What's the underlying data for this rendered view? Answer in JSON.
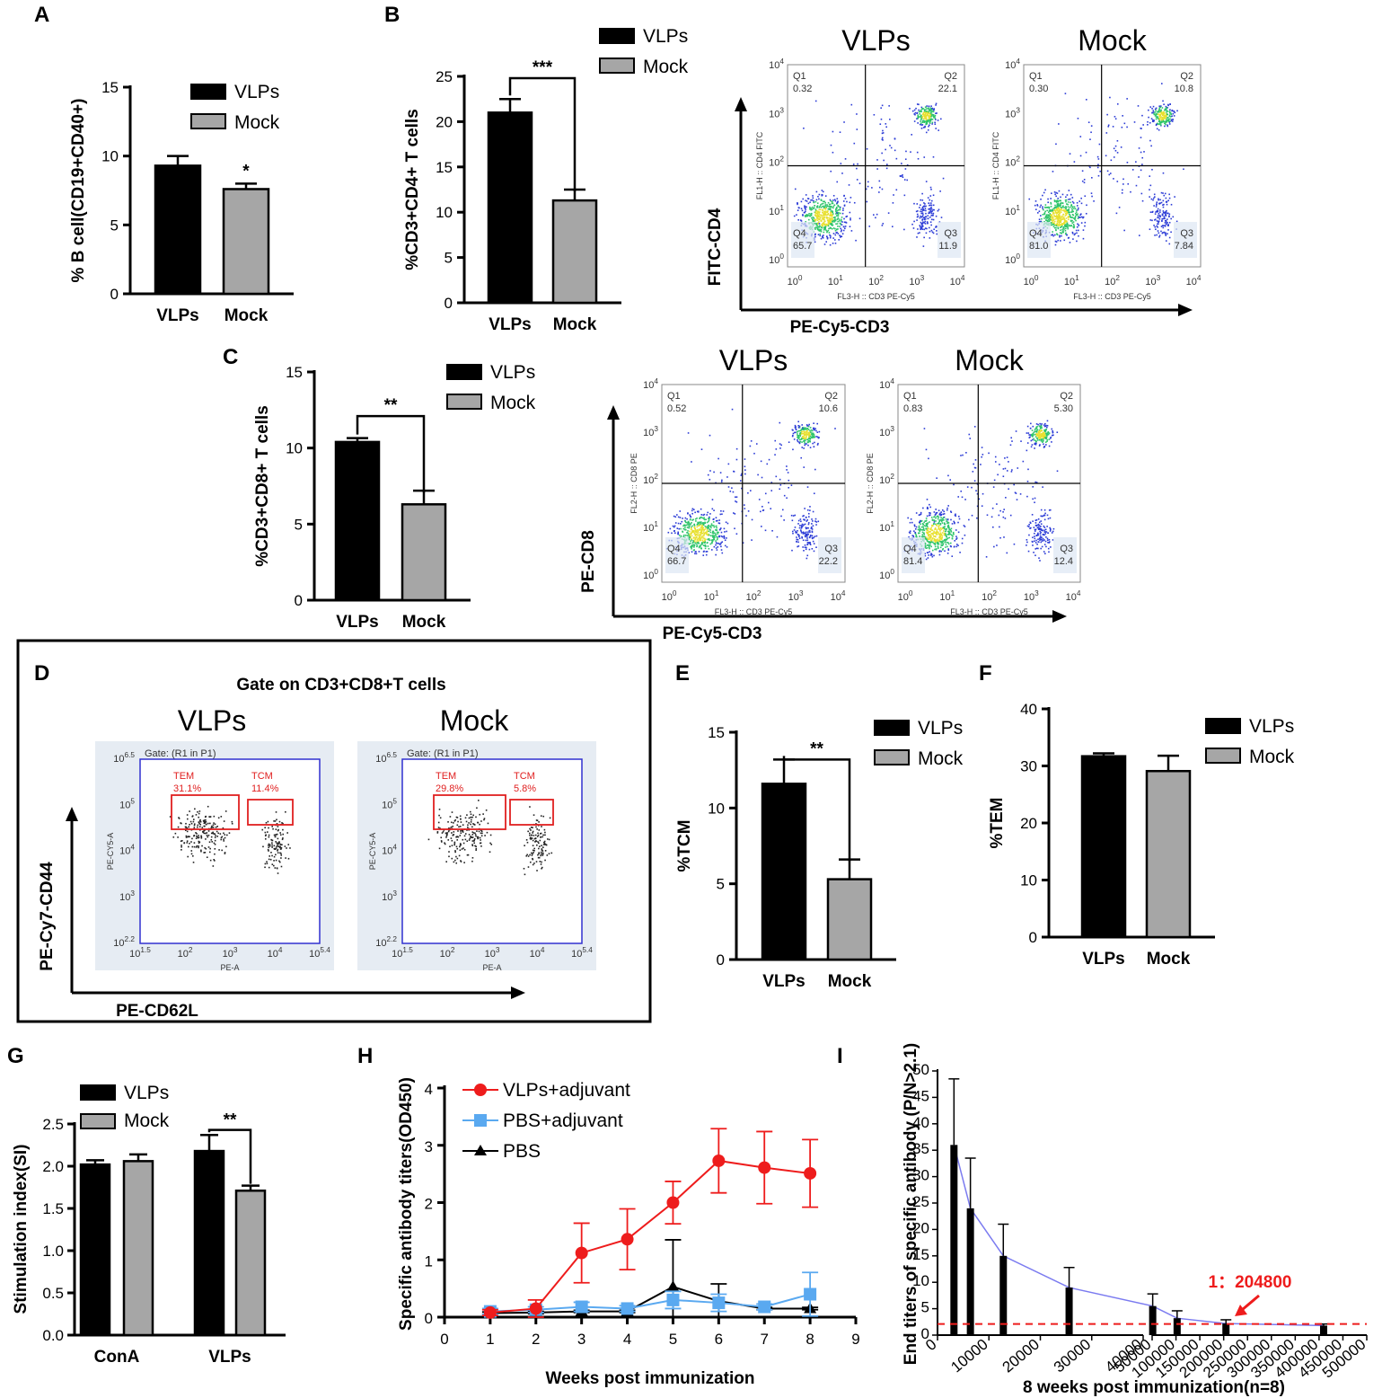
{
  "panel_letters": [
    "A",
    "B",
    "C",
    "D",
    "E",
    "F",
    "G",
    "H",
    "I"
  ],
  "colors": {
    "vlps": "#000000",
    "mock": "#a6a6a6",
    "red": "#ee1c1c",
    "blue": "#5aa9f0",
    "line_i": "#7b7bf0"
  },
  "legend": {
    "vlps": "VLPs",
    "mock": "Mock"
  },
  "chart_data": [
    {
      "id": "A",
      "type": "bar",
      "categories": [
        "VLPs",
        "Mock"
      ],
      "values": [
        9.3,
        7.6
      ],
      "errors": [
        0.7,
        0.4
      ],
      "ylabel": "% B cell(CD19+CD40+)",
      "ylim": [
        0,
        15
      ],
      "yticks": [
        "0",
        "5",
        "10",
        "15"
      ],
      "sig": "*"
    },
    {
      "id": "B",
      "type": "bar",
      "categories": [
        "VLPs",
        "Mock"
      ],
      "values": [
        21.0,
        11.3
      ],
      "errors": [
        1.5,
        1.2
      ],
      "ylabel": "%CD3+CD4+ T cells",
      "ylim": [
        0,
        25
      ],
      "yticks": [
        "0",
        "5",
        "10",
        "15",
        "20",
        "25"
      ],
      "sig": "***"
    },
    {
      "id": "C",
      "type": "bar",
      "categories": [
        "VLPs",
        "Mock"
      ],
      "values": [
        10.4,
        6.3
      ],
      "errors": [
        0.25,
        0.9
      ],
      "ylabel": "%CD3+CD8+ T cells",
      "ylim": [
        0,
        15
      ],
      "yticks": [
        "0",
        "5",
        "10",
        "15"
      ],
      "sig": "**"
    },
    {
      "id": "E",
      "type": "bar",
      "categories": [
        "VLPs",
        "Mock"
      ],
      "values": [
        11.6,
        5.3
      ],
      "errors": [
        1.6,
        1.3
      ],
      "ylabel": "%TCM",
      "ylim": [
        0,
        15
      ],
      "yticks": [
        "0",
        "5",
        "10",
        "15"
      ],
      "sig": "**"
    },
    {
      "id": "F",
      "type": "bar",
      "categories": [
        "VLPs",
        "Mock"
      ],
      "values": [
        31.7,
        29.1
      ],
      "errors": [
        0.5,
        2.7
      ],
      "ylabel": "%TEM",
      "ylim": [
        0,
        40
      ],
      "yticks": [
        "0",
        "10",
        "20",
        "30",
        "40"
      ],
      "sig": ""
    },
    {
      "id": "G",
      "type": "bar",
      "categories": [
        "ConA",
        "VLPs"
      ],
      "series": [
        {
          "name": "VLPs",
          "values": [
            2.02,
            2.18
          ],
          "errors": [
            0.05,
            0.19
          ]
        },
        {
          "name": "Mock",
          "values": [
            2.06,
            1.71
          ],
          "errors": [
            0.08,
            0.06
          ]
        }
      ],
      "ylabel": "Stimulation index(SI)",
      "ylim": [
        0,
        2.5
      ],
      "yticks": [
        "0.0",
        "0.5",
        "1.0",
        "1.5",
        "2.0",
        "2.5"
      ],
      "sig": "**"
    },
    {
      "id": "H",
      "type": "line",
      "x": [
        1,
        2,
        3,
        4,
        5,
        6,
        7,
        8
      ],
      "series": [
        {
          "name": "VLPs+adjuvant",
          "values": [
            0.08,
            0.15,
            1.12,
            1.36,
            2.0,
            2.73,
            2.61,
            2.51
          ],
          "errors": [
            0.05,
            0.15,
            0.52,
            0.53,
            0.37,
            0.56,
            0.63,
            0.59
          ]
        },
        {
          "name": "PBS+adjuvant",
          "values": [
            0.1,
            0.13,
            0.18,
            0.15,
            0.3,
            0.25,
            0.18,
            0.4
          ],
          "errors": [
            0.05,
            0.05,
            0.08,
            0.05,
            0.15,
            0.15,
            0.05,
            0.38
          ]
        },
        {
          "name": "PBS",
          "values": [
            0.07,
            0.08,
            0.1,
            0.1,
            0.53,
            0.28,
            0.15,
            0.15
          ],
          "errors": [
            0.02,
            0.02,
            0.02,
            0.02,
            0.82,
            0.3,
            0.02,
            0.02
          ]
        }
      ],
      "xlabel": "Weeks post immunization",
      "ylabel": "Specific antibody titers(OD450)",
      "xlim": [
        0,
        9
      ],
      "ylim": [
        0,
        4
      ],
      "xticks": [
        "0",
        "1",
        "2",
        "3",
        "4",
        "5",
        "6",
        "7",
        "8",
        "9"
      ],
      "yticks": [
        "0",
        "1",
        "2",
        "3",
        "4"
      ]
    },
    {
      "id": "I",
      "type": "bar",
      "x": [
        3200,
        6400,
        12800,
        25600,
        51200,
        102400,
        204800,
        409600
      ],
      "values": [
        36,
        24,
        15,
        9,
        5.5,
        3.2,
        2.2,
        1.8
      ],
      "errors": [
        12.5,
        9.5,
        6,
        3.8,
        2.3,
        1.4,
        0.7,
        0.3
      ],
      "cutoff": 2.1,
      "xlabel": "8 weeks post immunization(n=8)",
      "ylabel": "End titers of specific antibody (P/N>2.1)",
      "ylim": [
        0,
        50
      ],
      "yticks": [
        "0",
        "5",
        "10",
        "15",
        "20",
        "25",
        "30",
        "35",
        "40",
        "45",
        "50"
      ],
      "xticks_left": [
        "0",
        "10000",
        "20000",
        "30000",
        "40000"
      ],
      "xticks_right": [
        "50000",
        "100000",
        "150000",
        "200000",
        "250000",
        "300000",
        "350000",
        "400000",
        "450000",
        "500000"
      ],
      "annotation": "1：204800"
    }
  ],
  "flow_panels": [
    {
      "id": "B",
      "marker_y": "FITC-CD4",
      "marker_x": "PE-Cy5-CD3",
      "plots": [
        {
          "title": "VLPs",
          "q1": "0.32",
          "q2": "22.1",
          "q3": "11.9",
          "q4": "65.7",
          "ylab": "FL1-H :: CD4 FITC",
          "xlab": "FL3-H :: CD3 PE-Cy5"
        },
        {
          "title": "Mock",
          "q1": "0.30",
          "q2": "10.8",
          "q3": "7.84",
          "q4": "81.0",
          "ylab": "FL1-H :: CD4 FITC",
          "xlab": "FL3-H :: CD3 PE-Cy5"
        }
      ]
    },
    {
      "id": "C",
      "marker_y": "PE-CD8",
      "marker_x": "PE-Cy5-CD3",
      "plots": [
        {
          "title": "VLPs",
          "q1": "0.52",
          "q2": "10.6",
          "q3": "22.2",
          "q4": "66.7",
          "ylab": "FL2-H :: CD8 PE",
          "xlab": "FL3-H :: CD3 PE-Cy5"
        },
        {
          "title": "Mock",
          "q1": "0.83",
          "q2": "5.30",
          "q3": "12.4",
          "q4": "81.4",
          "ylab": "FL2-H :: CD8 PE",
          "xlab": "FL3-H :: CD3 PE-Cy5"
        }
      ]
    }
  ],
  "q_labels": [
    "Q1",
    "Q2",
    "Q3",
    "Q4"
  ],
  "flow_ticks": [
    "10^0",
    "10^1",
    "10^2",
    "10^3",
    "10^4"
  ],
  "panel_d": {
    "title": "Gate on CD3+CD8+T cells",
    "marker_y": "PE-Cy7-CD44",
    "marker_x": "PE-CD62L",
    "plots": [
      {
        "title": "VLPs",
        "gate": "Gate: (R1 in P1)",
        "tem": "TEM",
        "tem_val": "31.1%",
        "tcm": "TCM",
        "tcm_val": "11.4%"
      },
      {
        "title": "Mock",
        "gate": "Gate: (R1 in P1)",
        "tem": "TEM",
        "tem_val": "29.8%",
        "tcm": "TCM",
        "tcm_val": "5.8%"
      }
    ],
    "x_axis_label": "PE-A",
    "y_axis_label": "PE-CY5-A",
    "x_ticks": [
      "10^1.5",
      "10^2",
      "10^3",
      "10^4",
      "10^5.4"
    ],
    "y_ticks": [
      "10^2.2",
      "10^3",
      "10^4",
      "10^5",
      "10^6.5"
    ]
  }
}
